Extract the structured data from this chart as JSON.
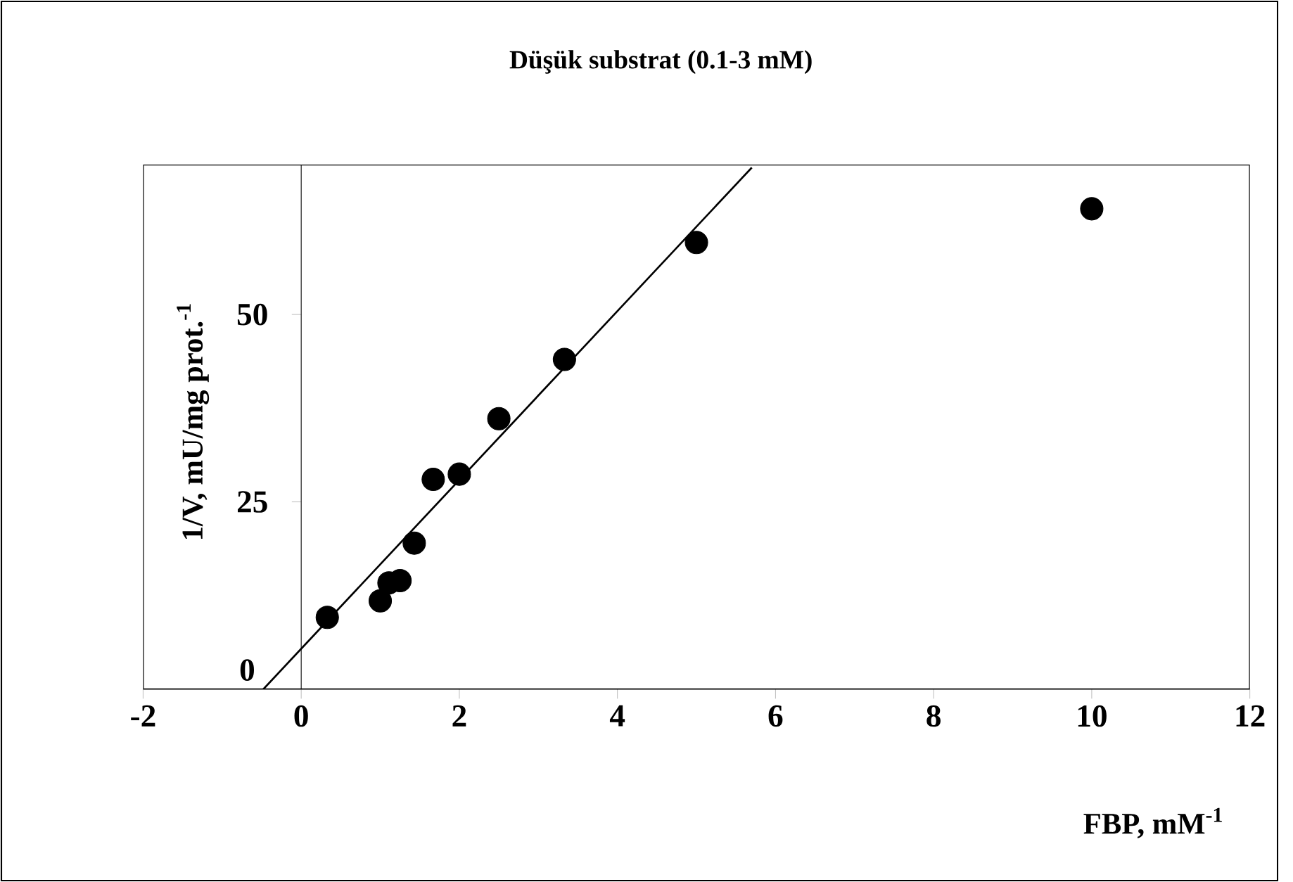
{
  "chart_data": {
    "type": "scatter",
    "title": "Düşük substrat (0.1-3 mM)",
    "xlabel": "FBP, mM$^{-1}$",
    "ylabel": "1/V, mU/mg prot.$^{-1}$",
    "xlim": [
      -2,
      12
    ],
    "ylim": [
      0,
      70
    ],
    "xticks": [
      -2,
      0,
      2,
      4,
      6,
      8,
      10,
      12
    ],
    "yticks": [
      0,
      25,
      50
    ],
    "marker": "circle",
    "series": [
      {
        "color": "#000000",
        "x": [
          0.33,
          1,
          1.11,
          1.25,
          1.43,
          1.67,
          2,
          2.5,
          3.33,
          5,
          10
        ],
        "values": [
          9.6,
          11.8,
          14.2,
          14.5,
          19.5,
          28.0,
          28.7,
          36.1,
          44.0,
          59.6,
          64.1
        ]
      },
      {
        "type": "line",
        "marker": "none",
        "line_style": "solid",
        "color": "#000000",
        "x": [
          -0.48,
          5.7
        ],
        "values": [
          0,
          69.6
        ]
      }
    ]
  }
}
